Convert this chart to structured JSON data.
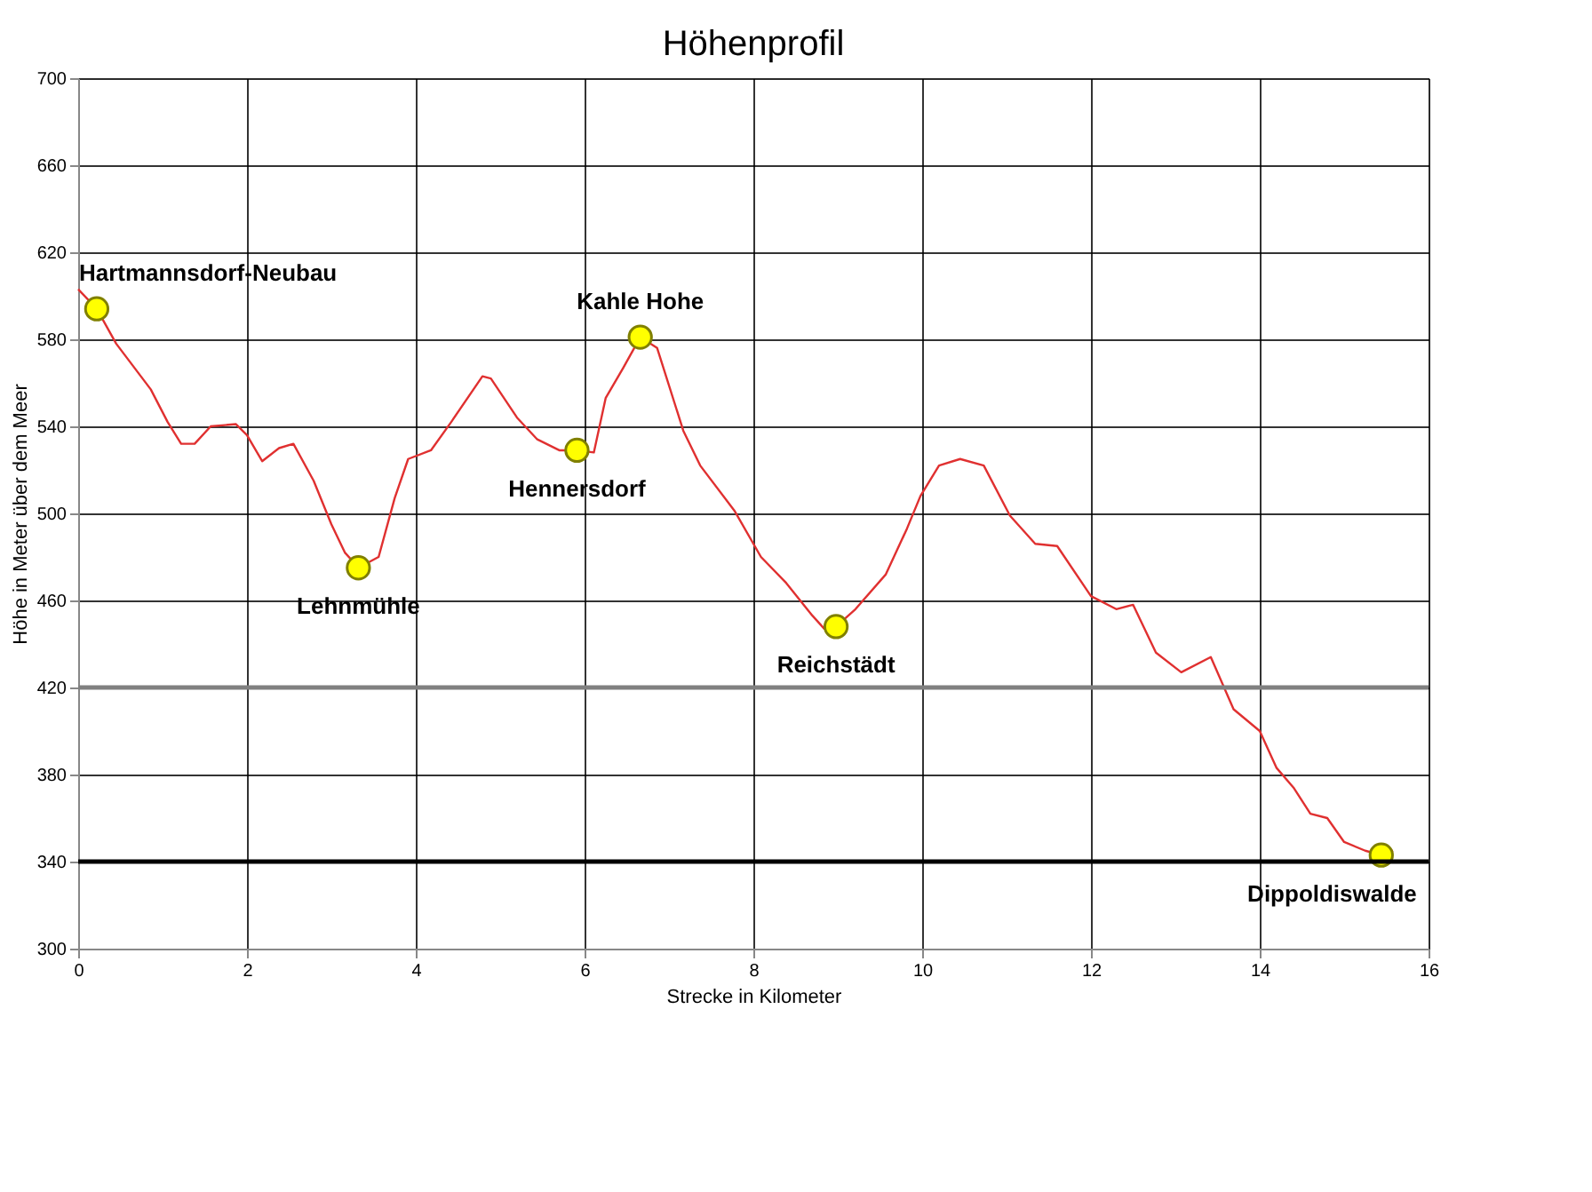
{
  "chart_data": {
    "type": "line",
    "title": "Höhenprofil",
    "xlabel": "Strecke in Kilometer",
    "ylabel": "Höhe in Meter über dem Meer",
    "xlim": [
      0,
      16
    ],
    "xticks": [
      0,
      2,
      4,
      6,
      8,
      10,
      12,
      14,
      16
    ],
    "ylim": [
      300,
      700
    ],
    "yticks": [
      300,
      340,
      380,
      420,
      460,
      500,
      540,
      580,
      620,
      660,
      700
    ],
    "grid": true,
    "ref_lines": [
      {
        "axis": "y",
        "value": 420,
        "color": "#808080"
      },
      {
        "axis": "y",
        "value": 340,
        "color": "#000000"
      }
    ],
    "series": [
      {
        "color": "#e03030",
        "marker": "none",
        "line_style": "solid",
        "x": [
          0,
          0.22,
          0.45,
          0.86,
          1.06,
          1.22,
          1.38,
          1.57,
          1.87,
          2.0,
          2.18,
          2.38,
          2.55,
          2.79,
          3.0,
          3.16,
          3.3,
          3.32,
          3.56,
          3.75,
          3.91,
          4.18,
          4.42,
          4.79,
          4.89,
          5.2,
          5.44,
          5.7,
          5.91,
          6.11,
          6.25,
          6.46,
          6.66,
          6.86,
          7.17,
          7.37,
          7.78,
          8.09,
          8.39,
          8.7,
          8.84,
          8.98,
          9.21,
          9.57,
          9.82,
          9.98,
          10.2,
          10.45,
          10.73,
          11.04,
          11.34,
          11.6,
          12.0,
          12.3,
          12.5,
          12.77,
          13.07,
          13.42,
          13.69,
          14.0,
          14.2,
          14.4,
          14.6,
          14.8,
          15.0,
          15.25,
          15.44,
          15.58
        ],
        "values": [
          603,
          594,
          578,
          557,
          542,
          532,
          532,
          540,
          541,
          536,
          524,
          530,
          532,
          515,
          495,
          482,
          476,
          475,
          480,
          507,
          525,
          529,
          542,
          563,
          562,
          544,
          534,
          529,
          529,
          528,
          553,
          567,
          581,
          576,
          538,
          522,
          501,
          480,
          468,
          453,
          447,
          448,
          456,
          472,
          493,
          508,
          522,
          525,
          522,
          499,
          486,
          485,
          462,
          456,
          458,
          436,
          427,
          434,
          410,
          400,
          383,
          374,
          362,
          360,
          349,
          345,
          343,
          345
        ]
      },
      {
        "type": "scatter",
        "color": "#ffff00",
        "marker": "circle",
        "x": [
          0.22,
          3.32,
          5.91,
          6.66,
          8.98,
          15.44
        ],
        "values": [
          594,
          475,
          529,
          581,
          448,
          343
        ]
      }
    ],
    "annotations": [
      {
        "text": "Hartmannsdorf-Neubau",
        "x": 0.22,
        "y": 594
      },
      {
        "text": "Lehnmühle",
        "x": 3.32,
        "y": 475
      },
      {
        "text": "Hennersdorf",
        "x": 5.91,
        "y": 529
      },
      {
        "text": "Kahle Hohe",
        "x": 6.66,
        "y": 581
      },
      {
        "text": "Reichstädt",
        "x": 8.98,
        "y": 448
      },
      {
        "text": "Dippoldiswalde",
        "x": 15.44,
        "y": 343
      }
    ]
  }
}
